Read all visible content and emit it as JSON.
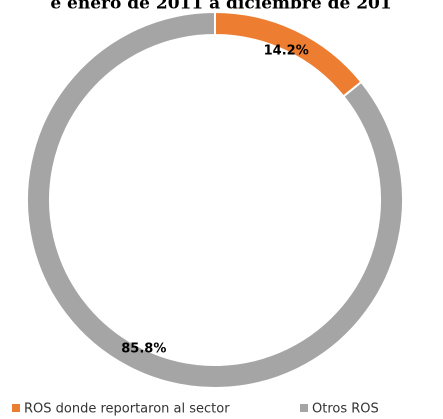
{
  "chart_data": {
    "type": "donut",
    "title": "e enero de 2011 a diciembre de 201",
    "categories": [
      "ROS donde reportaron al sector",
      "Otros ROS"
    ],
    "values": [
      14.2,
      85.8
    ],
    "value_labels": [
      "14.2%",
      "85.8%"
    ],
    "colors": [
      "#ed7d31",
      "#a5a5a5"
    ],
    "legend": "bottom"
  }
}
